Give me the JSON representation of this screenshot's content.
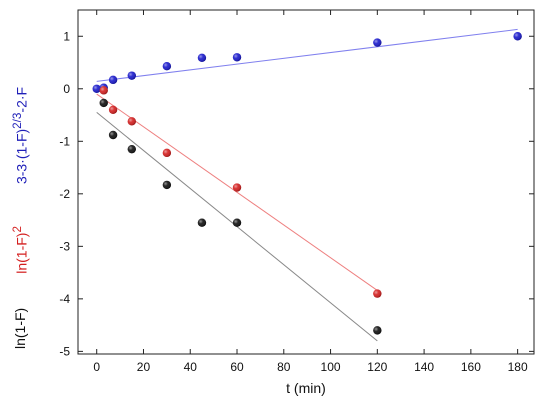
{
  "chart_data": {
    "type": "scatter",
    "x": {
      "label": "t (min)",
      "lim": [
        -8,
        187
      ],
      "ticks": [
        0,
        20,
        40,
        60,
        80,
        100,
        120,
        140,
        160,
        180
      ]
    },
    "y": {
      "lim": [
        -5.05,
        1.5
      ],
      "ticks": [
        -5,
        -4,
        -3,
        -2,
        -1,
        0,
        1
      ]
    },
    "ylabels": [
      {
        "text_html": "3-3&middot;(1-F)<sup>2/3</sup>-2&middot;F",
        "color": "#1f1fb8"
      },
      {
        "text_html": "ln(1-F)<sup>2</sup>",
        "color": "#d41f1f"
      },
      {
        "text_html": "ln(1-F)",
        "color": "#111111"
      }
    ],
    "grid": false,
    "series": [
      {
        "color": "#1a1acc",
        "line_color": "#8080ee",
        "points": [
          [
            0,
            0.0
          ],
          [
            3,
            0.02
          ],
          [
            7,
            0.17
          ],
          [
            15,
            0.25
          ],
          [
            30,
            0.43
          ],
          [
            45,
            0.59
          ],
          [
            60,
            0.6
          ],
          [
            120,
            0.88
          ],
          [
            180,
            1.0
          ]
        ],
        "fit": [
          [
            0,
            0.14
          ],
          [
            180,
            1.13
          ]
        ]
      },
      {
        "color": "#d42020",
        "line_color": "#ee8080",
        "points": [
          [
            3,
            -0.03
          ],
          [
            7,
            -0.4
          ],
          [
            15,
            -0.62
          ],
          [
            30,
            -1.22
          ],
          [
            60,
            -1.88
          ],
          [
            120,
            -3.9
          ]
        ],
        "fit": [
          [
            0,
            -0.1
          ],
          [
            120,
            -3.84
          ]
        ]
      },
      {
        "color": "#111111",
        "line_color": "#888888",
        "points": [
          [
            3,
            -0.27
          ],
          [
            7,
            -0.88
          ],
          [
            15,
            -1.15
          ],
          [
            30,
            -1.83
          ],
          [
            45,
            -2.55
          ],
          [
            60,
            -2.55
          ],
          [
            120,
            -4.6
          ]
        ],
        "fit": [
          [
            0,
            -0.45
          ],
          [
            120,
            -4.8
          ]
        ]
      }
    ]
  }
}
